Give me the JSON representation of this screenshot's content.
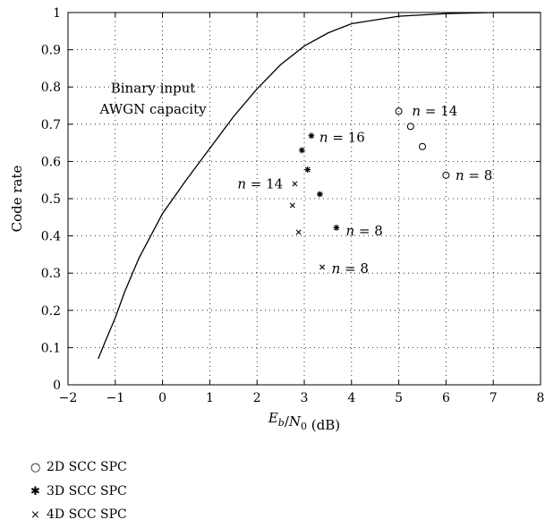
{
  "chart_data": {
    "type": "scatter",
    "xlabel": "E_b/N_0 (dB)",
    "ylabel": "Code rate",
    "xlim": [
      -2,
      8
    ],
    "ylim": [
      0,
      1
    ],
    "x_ticks": [
      -2,
      -1,
      0,
      1,
      2,
      3,
      4,
      5,
      6,
      7,
      8
    ],
    "y_ticks": [
      0,
      0.1,
      0.2,
      0.3,
      0.4,
      0.5,
      0.6,
      0.7,
      0.8,
      0.9,
      1
    ],
    "grid": true,
    "grid_style": "dotted",
    "curve": {
      "label_line1": "Binary input",
      "label_line2": "AWGN capacity",
      "points": [
        [
          -1.36,
          0.07
        ],
        [
          -1.2,
          0.12
        ],
        [
          -1.0,
          0.18
        ],
        [
          -0.8,
          0.25
        ],
        [
          -0.5,
          0.34
        ],
        [
          0.0,
          0.46
        ],
        [
          0.5,
          0.55
        ],
        [
          1.0,
          0.635
        ],
        [
          1.5,
          0.72
        ],
        [
          2.0,
          0.795
        ],
        [
          2.5,
          0.86
        ],
        [
          3.0,
          0.91
        ],
        [
          3.5,
          0.945
        ],
        [
          4.0,
          0.97
        ],
        [
          5.0,
          0.99
        ],
        [
          6.0,
          0.997
        ],
        [
          7.0,
          1.0
        ],
        [
          8.0,
          1.0
        ]
      ]
    },
    "series": [
      {
        "name": "2D SCC SPC",
        "marker": "circle",
        "points": [
          [
            5.0,
            0.735
          ],
          [
            5.25,
            0.694
          ],
          [
            5.5,
            0.64
          ],
          [
            6.0,
            0.563
          ]
        ]
      },
      {
        "name": "3D SCC SPC",
        "marker": "star",
        "points": [
          [
            3.15,
            0.669
          ],
          [
            2.95,
            0.63
          ],
          [
            3.07,
            0.578
          ],
          [
            3.33,
            0.512
          ],
          [
            3.68,
            0.422
          ]
        ]
      },
      {
        "name": "4D SCC SPC",
        "marker": "cross",
        "points": [
          [
            2.8,
            0.54
          ],
          [
            2.75,
            0.482
          ],
          [
            2.88,
            0.41
          ],
          [
            3.38,
            0.316
          ]
        ]
      }
    ],
    "annotations": [
      {
        "text": "n = 14",
        "x": 5.28,
        "y": 0.735,
        "anchor": "start"
      },
      {
        "text": "n = 16",
        "x": 3.32,
        "y": 0.665,
        "anchor": "start"
      },
      {
        "text": "n = 8",
        "x": 6.2,
        "y": 0.563,
        "anchor": "start"
      },
      {
        "text": "n = 14",
        "x": 2.55,
        "y": 0.54,
        "anchor": "end"
      },
      {
        "text": "n = 8",
        "x": 3.88,
        "y": 0.413,
        "anchor": "start"
      },
      {
        "text": "n = 8",
        "x": 3.58,
        "y": 0.313,
        "anchor": "start"
      }
    ]
  }
}
